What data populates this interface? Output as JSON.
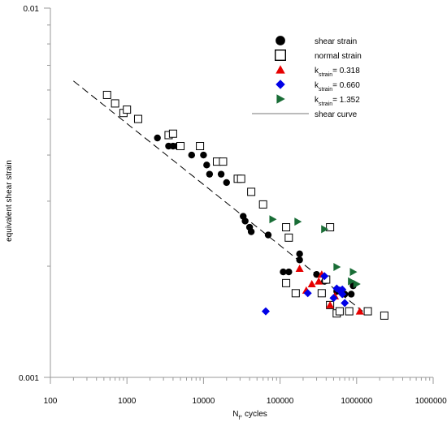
{
  "chart_data": {
    "type": "scatter",
    "xscale": "log",
    "yscale": "log",
    "xlim": [
      100,
      10000000
    ],
    "ylim": [
      0.001,
      0.01
    ],
    "xlabel_main": "N",
    "xlabel_sub": "f",
    "xlabel_rest": ", cycles",
    "ylabel": "equivalent shear strain",
    "x_tick_labels": [
      "100",
      "1000",
      "10000",
      "100000",
      "1000000",
      "10000000"
    ],
    "y_tick_labels": [
      "0.001",
      "0.01"
    ],
    "legend_position": "top-right",
    "series": [
      {
        "name": "shear strain",
        "marker": "circle-filled",
        "color": "#000000",
        "points": [
          [
            2500,
            0.00445
          ],
          [
            3500,
            0.00423
          ],
          [
            4000,
            0.00423
          ],
          [
            4500,
            0.00423
          ],
          [
            5000,
            0.00423
          ],
          [
            7000,
            0.004
          ],
          [
            9000,
            0.00423
          ],
          [
            10000,
            0.004
          ],
          [
            11000,
            0.00376
          ],
          [
            12000,
            0.00355
          ],
          [
            17000,
            0.00355
          ],
          [
            20000,
            0.00337
          ],
          [
            33000,
            0.00273
          ],
          [
            35000,
            0.00265
          ],
          [
            40000,
            0.00255
          ],
          [
            42000,
            0.00248
          ],
          [
            70000,
            0.00243
          ],
          [
            110000,
            0.00193
          ],
          [
            120000,
            0.0018
          ],
          [
            130000,
            0.00193
          ],
          [
            180000,
            0.00216
          ],
          [
            180000,
            0.00208
          ],
          [
            300000,
            0.0019
          ],
          [
            380000,
            0.00182
          ],
          [
            550000,
            0.00171
          ],
          [
            650000,
            0.00169
          ],
          [
            700000,
            0.00168
          ],
          [
            850000,
            0.00168
          ],
          [
            900000,
            0.00177
          ]
        ]
      },
      {
        "name": "normal strain",
        "marker": "square-open",
        "color": "#000000",
        "points": [
          [
            550,
            0.00582
          ],
          [
            700,
            0.00552
          ],
          [
            900,
            0.0052
          ],
          [
            1000,
            0.00531
          ],
          [
            1400,
            0.00501
          ],
          [
            3500,
            0.00453
          ],
          [
            4000,
            0.00457
          ],
          [
            5000,
            0.00423
          ],
          [
            9000,
            0.00423
          ],
          [
            15000,
            0.00384
          ],
          [
            18000,
            0.00384
          ],
          [
            28000,
            0.00345
          ],
          [
            31000,
            0.00345
          ],
          [
            42000,
            0.00318
          ],
          [
            60000,
            0.00294
          ],
          [
            120000,
            0.00255
          ],
          [
            130000,
            0.00239
          ],
          [
            120000,
            0.0018
          ],
          [
            160000,
            0.00169
          ],
          [
            350000,
            0.00169
          ],
          [
            400000,
            0.00184
          ],
          [
            450000,
            0.00157
          ],
          [
            550000,
            0.00149
          ],
          [
            600000,
            0.00151
          ],
          [
            800000,
            0.00151
          ],
          [
            1400000,
            0.00151
          ],
          [
            2300000,
            0.00147
          ],
          [
            450000,
            0.00255
          ]
        ]
      },
      {
        "name": "k_strain= 0.318",
        "marker": "triangle-up",
        "color": "#e60000",
        "points": [
          [
            180000,
            0.00197
          ],
          [
            220000,
            0.00172
          ],
          [
            260000,
            0.00179
          ],
          [
            320000,
            0.00182
          ],
          [
            350000,
            0.0019
          ],
          [
            450000,
            0.00157
          ],
          [
            520000,
            0.00166
          ],
          [
            1100000,
            0.00151
          ]
        ]
      },
      {
        "name": "k_strain= 0.660",
        "marker": "diamond",
        "color": "#0000e6",
        "points": [
          [
            65000,
            0.00151
          ],
          [
            230000,
            0.00169
          ],
          [
            380000,
            0.00188
          ],
          [
            500000,
            0.00164
          ],
          [
            550000,
            0.00174
          ],
          [
            600000,
            0.00172
          ],
          [
            650000,
            0.00173
          ],
          [
            700000,
            0.00159
          ],
          [
            650000,
            0.00168
          ]
        ]
      },
      {
        "name": "k_strain= 1.352",
        "marker": "triangle-right",
        "color": "#196d36",
        "points": [
          [
            80000,
            0.00268
          ],
          [
            170000,
            0.00264
          ],
          [
            380000,
            0.00252
          ],
          [
            550000,
            0.00199
          ],
          [
            900000,
            0.00193
          ],
          [
            1000000,
            0.00179
          ],
          [
            850000,
            0.00182
          ]
        ]
      },
      {
        "name": "shear curve",
        "marker": "line-dashed",
        "color": "#000000",
        "points": [
          [
            200,
            0.00635
          ],
          [
            1200000,
            0.00151
          ]
        ]
      }
    ],
    "legend": [
      {
        "label": "shear strain"
      },
      {
        "label": "normal strain"
      },
      {
        "label_main": "k",
        "label_sub": "strain",
        "label_rest": "= 0.318"
      },
      {
        "label_main": "k",
        "label_sub": "strain",
        "label_rest": "= 0.660"
      },
      {
        "label_main": "k",
        "label_sub": "strain",
        "label_rest": "= 1.352"
      },
      {
        "label": "shear curve"
      }
    ]
  }
}
